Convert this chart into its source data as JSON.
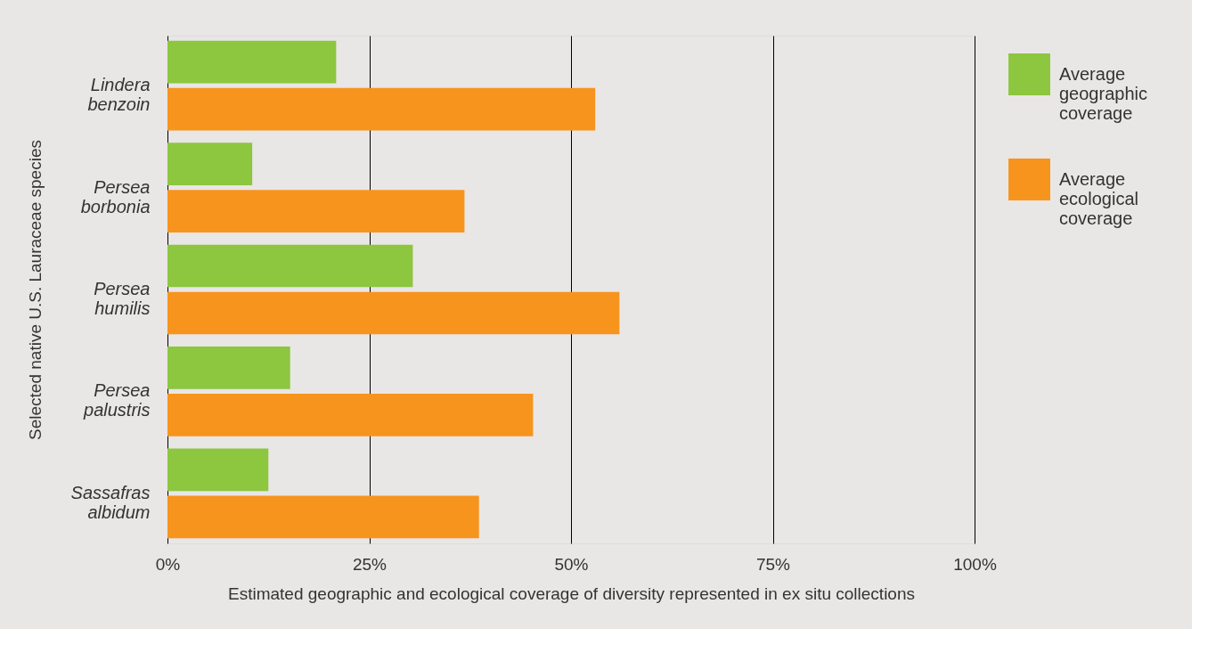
{
  "chart_data": {
    "type": "bar",
    "orientation": "horizontal",
    "xlabel": "Estimated geographic and ecological coverage of diversity represented in ex situ collections",
    "ylabel": "Selected native U.S. Lauraceae species",
    "categories": [
      "Lindera benzoin",
      "Persea borbonia",
      "Persea humilis",
      "Persea palustris",
      "Sassafras albidum"
    ],
    "series": [
      {
        "name": "Average geographic coverage",
        "color": "#8dc63f",
        "values": [
          20.9,
          10.5,
          30.4,
          15.2,
          12.5
        ]
      },
      {
        "name": "Average ecological coverage",
        "color": "#f7941d",
        "values": [
          53.0,
          36.8,
          56.0,
          45.3,
          38.6
        ]
      }
    ],
    "xlim": [
      0,
      100
    ],
    "xticks": [
      {
        "value": 0,
        "label": "0%"
      },
      {
        "value": 25,
        "label": "25%"
      },
      {
        "value": 50,
        "label": "50%"
      },
      {
        "value": 75,
        "label": "75%"
      },
      {
        "value": 100,
        "label": "100%"
      }
    ],
    "grid": "x",
    "legend": "right"
  }
}
